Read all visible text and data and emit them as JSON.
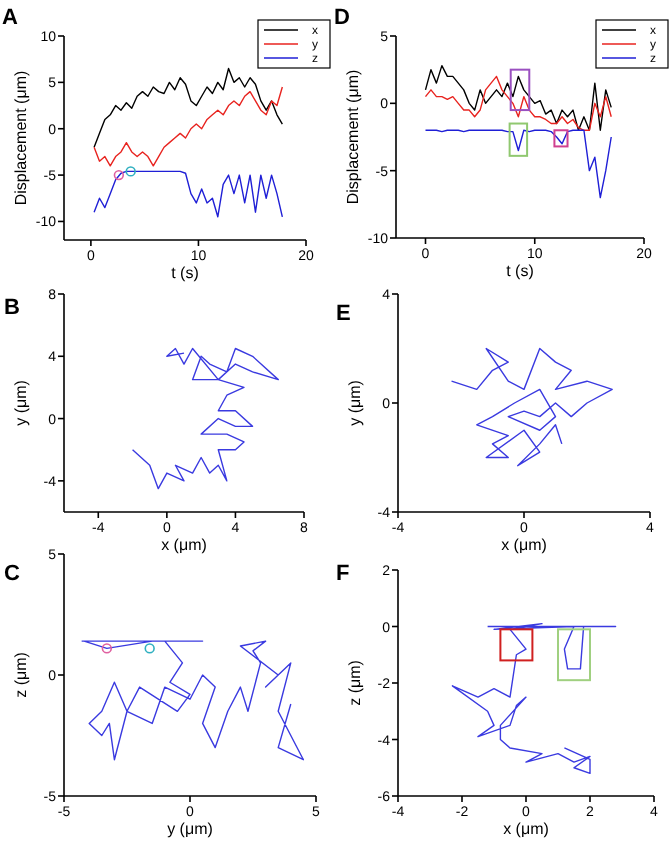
{
  "chart_data": [
    {
      "type": "line",
      "title": "A",
      "xlabel": "t (s)",
      "ylabel": "Displacement (μm)",
      "xlim": [
        -2.5,
        20
      ],
      "ylim": [
        -12,
        10
      ],
      "xticks": [
        0,
        10,
        20
      ],
      "yticks": [
        -10,
        -5,
        0,
        5,
        10
      ],
      "legend": "top right",
      "x": [
        0.3,
        0.8,
        1.3,
        1.8,
        2.3,
        2.8,
        3.3,
        3.8,
        4.3,
        4.8,
        5.3,
        5.8,
        6.3,
        6.8,
        7.3,
        7.8,
        8.3,
        8.8,
        9.3,
        9.8,
        10.3,
        10.8,
        11.3,
        11.8,
        12.3,
        12.8,
        13.3,
        13.8,
        14.3,
        14.8,
        15.3,
        15.8,
        16.3,
        16.8,
        17.3,
        17.8
      ],
      "series": [
        {
          "name": "x",
          "color": "#000000",
          "values": [
            -2,
            -0.5,
            1,
            1.5,
            2.5,
            2,
            2.8,
            2.2,
            3.5,
            4,
            3.5,
            4.5,
            4,
            3.8,
            5,
            4.2,
            5.5,
            4.8,
            3,
            2.5,
            3.5,
            4.5,
            3.8,
            5,
            4.2,
            6.5,
            5,
            5.5,
            4.5,
            5.5,
            4.8,
            3,
            2,
            3,
            1.5,
            0.5
          ]
        },
        {
          "name": "y",
          "color": "#e8231f",
          "values": [
            -2,
            -3.5,
            -3,
            -4,
            -3,
            -2.5,
            -1.5,
            -2.5,
            -3,
            -2.5,
            -3,
            -4,
            -3,
            -2,
            -1.5,
            -1,
            -0.5,
            -1,
            0,
            0.5,
            0,
            1,
            1.5,
            2,
            1.5,
            2.5,
            3,
            2.5,
            3.5,
            4,
            3,
            2,
            1.5,
            3,
            2.5,
            4.5
          ]
        },
        {
          "name": "z",
          "color": "#1f1fd6",
          "values": [
            -9,
            -7.5,
            -8.5,
            -7,
            -5.5,
            -4.8,
            -4.6,
            -4.6,
            -4.6,
            -4.6,
            -4.6,
            -4.6,
            -4.6,
            -4.6,
            -4.6,
            -4.6,
            -4.6,
            -4.8,
            -7,
            -8,
            -6.5,
            -8,
            -7.5,
            -9.5,
            -6,
            -5,
            -7,
            -5,
            -8,
            -5,
            -9,
            -5,
            -7.5,
            -5,
            -7,
            -9.5
          ]
        }
      ]
    },
    {
      "type": "line",
      "title": "D",
      "xlabel": "t (s)",
      "ylabel": "Displacement (μm)",
      "xlim": [
        -2.7,
        20
      ],
      "ylim": [
        -10,
        5
      ],
      "xticks": [
        0,
        10,
        20
      ],
      "yticks": [
        -10,
        -5,
        0,
        5
      ],
      "legend": "top right",
      "x": [
        0,
        0.5,
        1,
        1.5,
        2,
        2.5,
        3,
        3.5,
        4,
        4.5,
        5,
        5.5,
        6,
        6.5,
        7,
        7.5,
        8,
        8.5,
        9,
        9.5,
        10,
        10.5,
        11,
        11.5,
        12,
        12.5,
        13,
        13.5,
        14,
        14.5,
        15,
        15.5,
        16,
        16.5,
        17
      ],
      "series": [
        {
          "name": "x",
          "color": "#000000",
          "values": [
            1,
            2.5,
            1.5,
            2.8,
            2,
            2,
            1.5,
            1,
            0,
            -0.5,
            1,
            0,
            0.5,
            1,
            0.5,
            1.5,
            0.5,
            2,
            1,
            0.5,
            0,
            0.2,
            -0.8,
            -0.5,
            -1.5,
            -0.5,
            -1,
            -0.5,
            -2,
            -1,
            -2,
            1.5,
            -2,
            1,
            -0.3
          ]
        },
        {
          "name": "y",
          "color": "#e8231f",
          "values": [
            0.5,
            1,
            0.5,
            0.5,
            0.3,
            0.5,
            0,
            -0.5,
            -0.5,
            -1,
            -0.5,
            1,
            1.5,
            2,
            1,
            0.5,
            0,
            -1,
            0.5,
            -0.5,
            -1,
            -1,
            -1.2,
            -1.5,
            -1.5,
            -1,
            -1.5,
            -1.2,
            -1.8,
            -2,
            -2,
            0,
            -1,
            0.5,
            -1
          ]
        },
        {
          "name": "z",
          "color": "#1f1fd6",
          "values": [
            -2,
            -2,
            -2,
            -2.1,
            -2,
            -2,
            -2,
            -2.1,
            -2,
            -2,
            -2,
            -2,
            -2,
            -2,
            -2,
            -2.1,
            -2.1,
            -3.5,
            -2,
            -2.1,
            -2,
            -2,
            -2,
            -2.1,
            -2.5,
            -3,
            -2.1,
            -2,
            -2,
            -2,
            -5,
            -4,
            -7,
            -5,
            -2.5
          ]
        }
      ]
    },
    {
      "type": "line",
      "title": "B",
      "xlabel": "x (μm)",
      "ylabel": "y (μm)",
      "xlim": [
        -6,
        8
      ],
      "ylim": [
        -6,
        8
      ],
      "xticks": [
        -4,
        0,
        4,
        8
      ],
      "yticks": [
        -4,
        0,
        4,
        8
      ],
      "series": [
        {
          "color": "#3a3ae0",
          "x": [
            -2,
            -1.5,
            -1,
            -0.5,
            0,
            1,
            0.5,
            1.5,
            2,
            2.5,
            3,
            3.5,
            3,
            4,
            4.5,
            3.5,
            2,
            3,
            4,
            5,
            4,
            3,
            3.5,
            4.5,
            3,
            4,
            5,
            6.5,
            5,
            4,
            3.5,
            2.5,
            2,
            1.5,
            3,
            1.5,
            1,
            0.5,
            0,
            1
          ],
          "values": [
            -2,
            -2.5,
            -3,
            -4.5,
            -3.5,
            -4,
            -3,
            -3.5,
            -2.5,
            -3.5,
            -3,
            -4,
            -2,
            -2,
            -1.5,
            -1,
            -1,
            0,
            -0.5,
            -0.5,
            0.5,
            0.5,
            1.5,
            2,
            2.5,
            3.5,
            3,
            2.5,
            4,
            4.5,
            3,
            3.5,
            4,
            2.5,
            2.5,
            4.5,
            3.5,
            4.5,
            4,
            4.2
          ]
        }
      ]
    },
    {
      "type": "line",
      "title": "E",
      "xlabel": "x (μm)",
      "ylabel": "y (μm)",
      "xlim": [
        -4,
        4
      ],
      "ylim": [
        -4,
        4
      ],
      "xticks": [
        -4,
        0,
        4
      ],
      "yticks": [
        -4,
        0,
        4
      ],
      "series": [
        {
          "color": "#3a3ae0",
          "x": [
            -2.3,
            -1.5,
            -1,
            -0.5,
            -1.2,
            -0.5,
            0,
            0.5,
            1,
            1.5,
            1,
            2,
            2.8,
            2,
            1.5,
            1,
            0.5,
            0,
            -0.5,
            0.5,
            1,
            0.5,
            -0.3,
            -1,
            -1.5,
            -0.5,
            -1,
            -0.5,
            -1.2,
            0,
            0.5,
            -0.2,
            0.5,
            1,
            1.2
          ],
          "values": [
            0.8,
            0.5,
            1.2,
            1.5,
            2,
            0.8,
            0.5,
            2,
            1.5,
            1.2,
            0.5,
            0.8,
            0.5,
            0,
            -0.5,
            0,
            -0.5,
            -0.3,
            -0.5,
            -1,
            -0.5,
            0.5,
            0,
            -0.5,
            -0.8,
            -1.2,
            -1.5,
            -2,
            -2,
            -1,
            -1.8,
            -2.3,
            -1.5,
            -0.8,
            -1.5
          ]
        }
      ]
    },
    {
      "type": "line",
      "title": "C",
      "xlabel": "y (μm)",
      "ylabel": "z (μm)",
      "xlim": [
        -5,
        5
      ],
      "ylim": [
        -5,
        5
      ],
      "xticks": [
        -5,
        0,
        5
      ],
      "yticks": [
        -5,
        0,
        5
      ],
      "series": [
        {
          "color": "#3a3ae0",
          "x": [
            -4.3,
            0.5,
            -1.5,
            -3.3,
            -4.2,
            -1,
            -0.3,
            -0.8,
            0,
            -0.5,
            -2,
            -2.5,
            -3,
            -3.5,
            -4,
            -3.5,
            -3.2,
            -3,
            -2.5,
            -1.5,
            -1,
            0,
            0.5,
            1,
            0.5,
            1,
            1.5,
            2,
            2.3,
            2.8,
            2.5,
            3,
            2,
            3.5,
            3,
            4,
            3.5,
            4,
            4.5,
            3.5,
            4
          ],
          "values": [
            1.4,
            1.4,
            1.4,
            1.1,
            1.4,
            1.4,
            0.5,
            -0.3,
            -0.8,
            -1.5,
            -0.5,
            -1.5,
            -0.3,
            -1.5,
            -2,
            -2.5,
            -2,
            -3.5,
            -1.5,
            -2,
            -0.5,
            -1,
            0,
            -0.5,
            -2,
            -3,
            -1.5,
            -0.5,
            -1.5,
            0.5,
            1,
            1.4,
            1.2,
            0,
            -0.5,
            0.5,
            -1.5,
            -2.5,
            -3.5,
            -3,
            -1.2
          ]
        }
      ]
    },
    {
      "type": "line",
      "title": "F",
      "xlabel": "x (μm)",
      "ylabel": "z (μm)",
      "xlim": [
        -4,
        4
      ],
      "ylim": [
        -6,
        2
      ],
      "xticks": [
        -4,
        -2,
        0,
        2,
        4
      ],
      "yticks": [
        -6,
        -4,
        -2,
        0,
        2
      ],
      "series": [
        {
          "color": "#3a3ae0",
          "x": [
            -1.2,
            2.8,
            1.8,
            1.7,
            1.3,
            1.2,
            1.5,
            -1,
            0.5,
            0,
            -0.5,
            0,
            -0.3,
            -0.5,
            -1,
            -1.5,
            -2.3,
            -1.2,
            -1,
            -1.5,
            -0.5,
            -0.3,
            0,
            -0.8,
            -0.8,
            -0.5,
            0.5,
            0,
            1,
            1.5,
            2,
            1.5,
            2,
            2,
            1.2
          ],
          "values": [
            0,
            0,
            0,
            -1.5,
            -1.5,
            -0.8,
            0,
            -0.1,
            0.1,
            0,
            -0.1,
            -0.8,
            -1,
            -2.5,
            -2.2,
            -2.5,
            -2.1,
            -3,
            -3.5,
            -3.9,
            -3.5,
            -2.8,
            -2.5,
            -3.5,
            -4,
            -4.3,
            -4.5,
            -4.8,
            -4.5,
            -4.8,
            -4.6,
            -5,
            -5.2,
            -4.7,
            -4.3
          ]
        }
      ]
    }
  ]
}
